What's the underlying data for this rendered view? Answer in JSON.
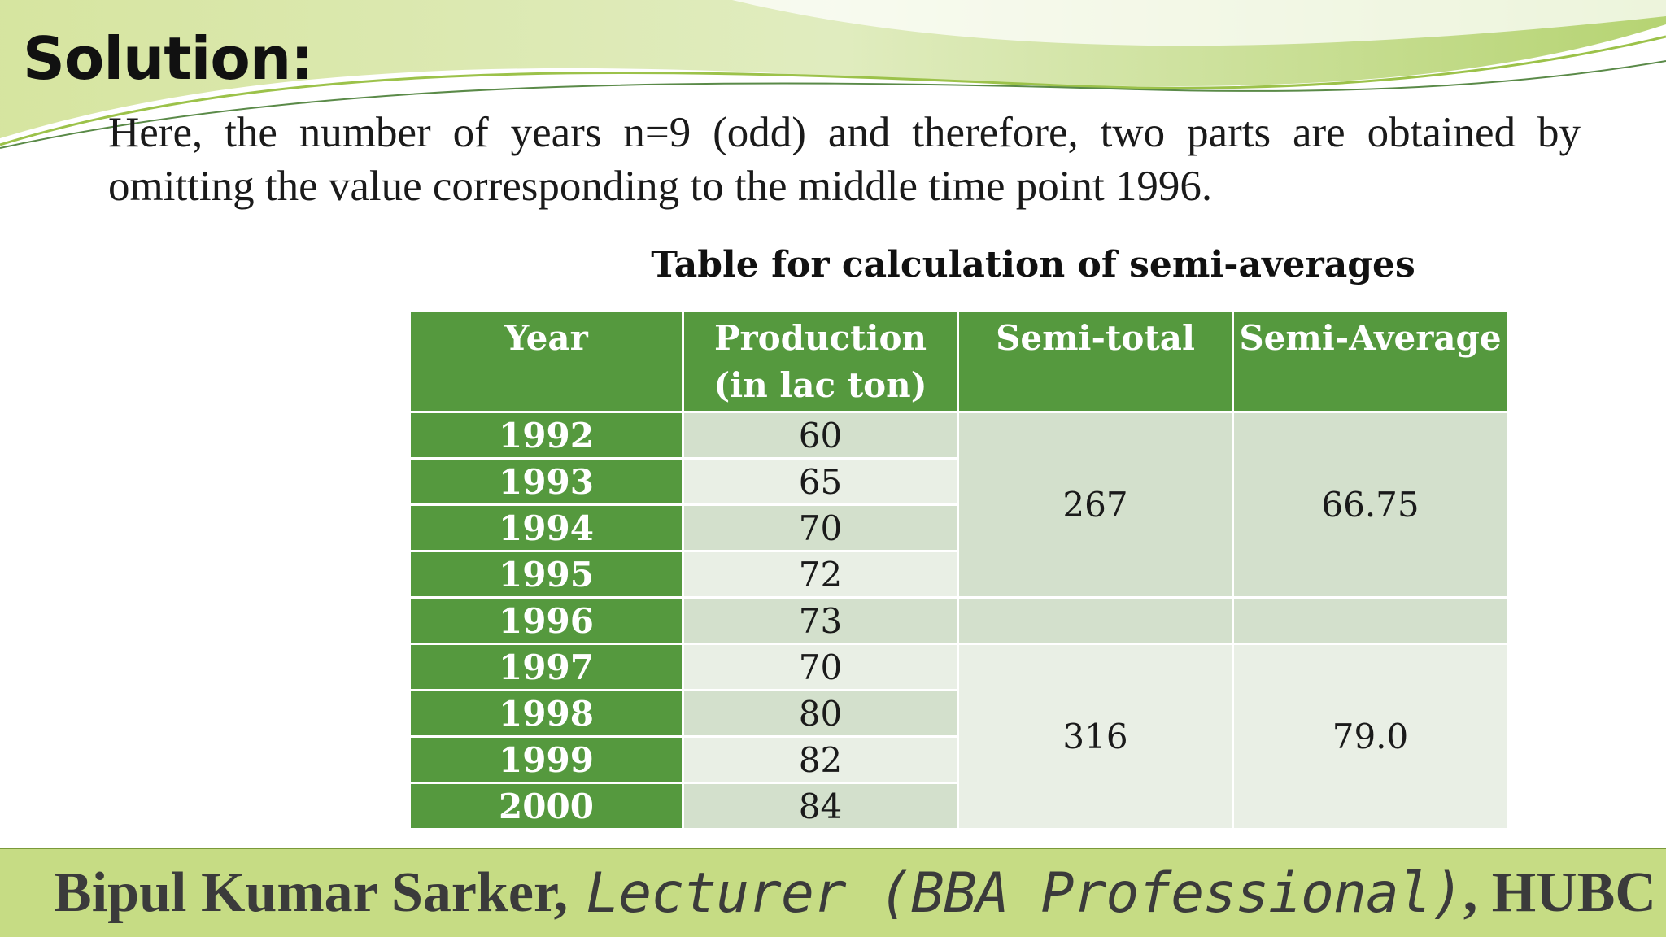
{
  "slide": {
    "heading": "Solution:",
    "body_text": "Here, the number of years n=9 (odd) and therefore, two parts are obtained by omitting the value corresponding to the middle time point 1996.",
    "table_caption": "Table for calculation of semi-averages"
  },
  "table": {
    "headers": [
      "Year",
      "Production (in lac ton)",
      "Semi-total",
      "Semi-Average"
    ],
    "rows": [
      {
        "year": "1992",
        "production": "60"
      },
      {
        "year": "1993",
        "production": "65"
      },
      {
        "year": "1994",
        "production": "70"
      },
      {
        "year": "1995",
        "production": "72"
      },
      {
        "year": "1996",
        "production": "73"
      },
      {
        "year": "1997",
        "production": "70"
      },
      {
        "year": "1998",
        "production": "80"
      },
      {
        "year": "1999",
        "production": "82"
      },
      {
        "year": "2000",
        "production": "84"
      }
    ],
    "group_1": {
      "semi_total": "267",
      "semi_average": "66.75"
    },
    "group_2": {
      "semi_total": "316",
      "semi_average": "79.0"
    }
  },
  "footer": {
    "name": "Bipul Kumar Sarker,",
    "role": "Lecturer (BBA Professional)",
    "org": ", HUBC"
  },
  "colors": {
    "header_green": "#55993e",
    "cell_dark": "#d3e0cc",
    "cell_light": "#e9efe5",
    "footer_bg": "#c6dc84"
  }
}
